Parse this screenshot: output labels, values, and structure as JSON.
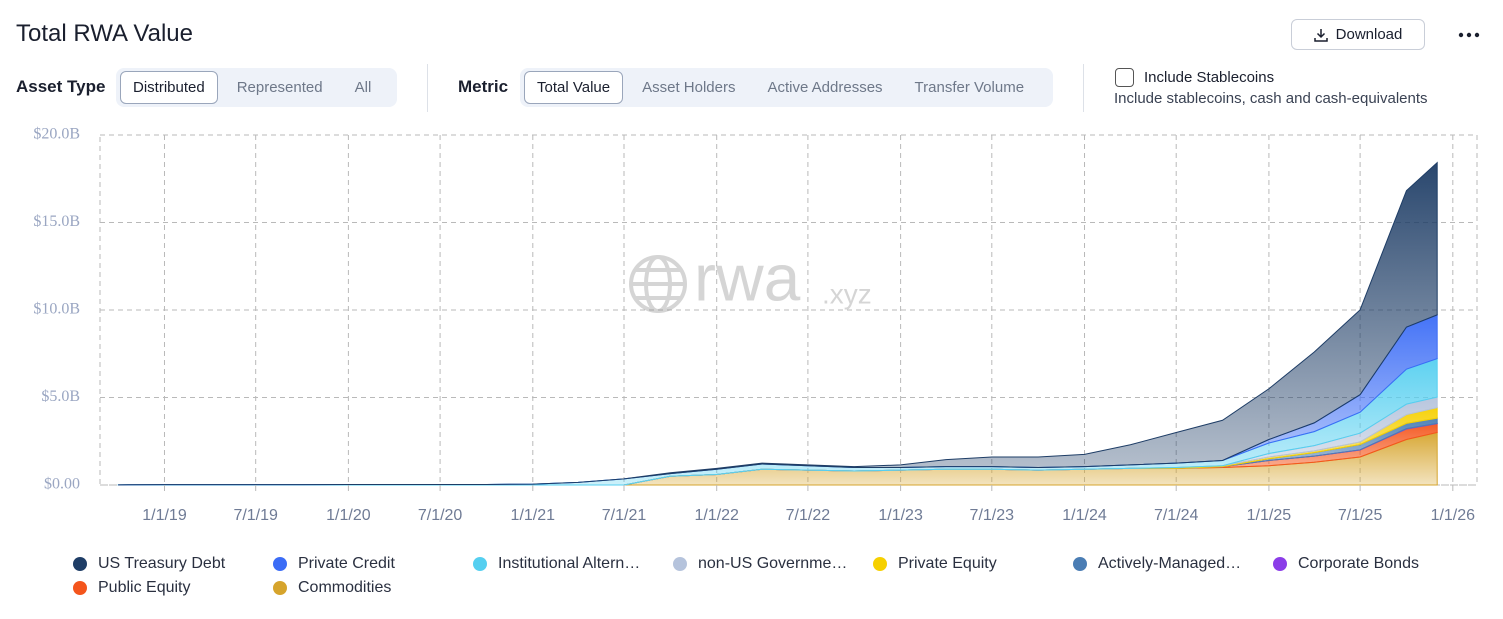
{
  "header": {
    "title": "Total RWA Value",
    "download": "Download"
  },
  "asset_type": {
    "label": "Asset Type",
    "options": [
      "Distributed",
      "Represented",
      "All"
    ]
  },
  "metric": {
    "label": "Metric",
    "options": [
      "Total Value",
      "Asset Holders",
      "Active Addresses",
      "Transfer Volume"
    ]
  },
  "stablecoins": {
    "label": "Include Stablecoins",
    "description": "Include stablecoins, cash and cash-equivalents"
  },
  "watermark": {
    "name": "rwa",
    "suffix": ".xyz"
  },
  "chart_data": {
    "type": "area",
    "stacked": true,
    "grid": true,
    "x": [
      "10/1/18",
      "1/1/19",
      "4/1/19",
      "7/1/19",
      "10/1/19",
      "1/1/20",
      "4/1/20",
      "7/1/20",
      "10/1/20",
      "1/1/21",
      "4/1/21",
      "7/1/21",
      "10/1/21",
      "1/1/22",
      "4/1/22",
      "7/1/22",
      "10/1/22",
      "1/1/23",
      "4/1/23",
      "7/1/23",
      "10/1/23",
      "1/1/24",
      "4/1/24",
      "7/1/24",
      "10/1/24",
      "1/1/25",
      "4/1/25",
      "7/1/25",
      "10/1/25",
      "12/1/25"
    ],
    "xlim": [
      "8/26/18",
      "2/18/26"
    ],
    "xticks": [
      "1/1/19",
      "7/1/19",
      "1/1/20",
      "7/1/20",
      "1/1/21",
      "7/1/21",
      "1/1/22",
      "7/1/22",
      "1/1/23",
      "7/1/23",
      "1/1/24",
      "7/1/24",
      "1/1/25",
      "7/1/25",
      "1/1/26"
    ],
    "ylim": [
      0,
      20000000000
    ],
    "yticks": [
      {
        "value": 0,
        "label": "$0.00"
      },
      {
        "value": 5000000000,
        "label": "$5.0B"
      },
      {
        "value": 10000000000,
        "label": "$10.0B"
      },
      {
        "value": 15000000000,
        "label": "$15.0B"
      },
      {
        "value": 20000000000,
        "label": "$20.0B"
      }
    ],
    "series": [
      {
        "name": "US Treasury Debt",
        "color": "#1e3d66",
        "values": [
          0,
          0,
          0,
          0,
          0,
          0,
          0,
          0,
          0,
          0,
          0,
          0,
          50000000,
          50000000,
          50000000,
          50000000,
          50000000,
          150000000,
          400000000,
          550000000,
          600000000,
          700000000,
          1150000000,
          1750000000,
          2300000000,
          2900000000,
          4050000000,
          4850000000,
          7800000000,
          8700000000
        ]
      },
      {
        "name": "Private Credit",
        "color": "#3b6cf6",
        "values": [
          0,
          0,
          0,
          0,
          0,
          0,
          0,
          0,
          0,
          0,
          0,
          0,
          0,
          0,
          0,
          0,
          0,
          0,
          0,
          0,
          0,
          0,
          0,
          0,
          0,
          200000000,
          500000000,
          1000000000,
          2400000000,
          2500000000
        ]
      },
      {
        "name": "Institutional Altern…",
        "color": "#55cff0",
        "values": [
          10000000,
          20000000,
          20000000,
          20000000,
          20000000,
          30000000,
          30000000,
          30000000,
          30000000,
          50000000,
          150000000,
          350000000,
          150000000,
          300000000,
          300000000,
          250000000,
          200000000,
          150000000,
          150000000,
          150000000,
          150000000,
          150000000,
          200000000,
          250000000,
          300000000,
          600000000,
          800000000,
          1200000000,
          2000000000,
          2200000000
        ]
      },
      {
        "name": "non-US Governme…",
        "color": "#b5c3dc",
        "values": [
          0,
          0,
          0,
          0,
          0,
          0,
          0,
          0,
          0,
          0,
          0,
          0,
          0,
          0,
          0,
          0,
          0,
          0,
          0,
          0,
          0,
          0,
          0,
          0,
          0,
          200000000,
          300000000,
          500000000,
          600000000,
          600000000
        ]
      },
      {
        "name": "Private Equity",
        "color": "#f6d000",
        "values": [
          0,
          0,
          0,
          0,
          0,
          0,
          0,
          0,
          0,
          0,
          0,
          0,
          0,
          0,
          0,
          0,
          0,
          0,
          0,
          0,
          0,
          0,
          0,
          50000000,
          50000000,
          100000000,
          100000000,
          150000000,
          500000000,
          600000000
        ]
      },
      {
        "name": "Actively-Managed…",
        "color": "#4a7db4",
        "values": [
          0,
          0,
          0,
          0,
          0,
          0,
          0,
          0,
          0,
          0,
          0,
          0,
          0,
          0,
          0,
          0,
          0,
          0,
          0,
          0,
          0,
          0,
          0,
          0,
          0,
          100000000,
          200000000,
          300000000,
          300000000,
          300000000
        ]
      },
      {
        "name": "Corporate Bonds",
        "color": "#8b3de8",
        "values": [
          0,
          0,
          0,
          0,
          0,
          0,
          0,
          0,
          0,
          0,
          0,
          0,
          0,
          0,
          0,
          0,
          0,
          0,
          0,
          0,
          0,
          0,
          0,
          0,
          0,
          0,
          0,
          10000000,
          20000000,
          20000000
        ]
      },
      {
        "name": "Public Equity",
        "color": "#f4551c",
        "values": [
          0,
          0,
          0,
          0,
          0,
          0,
          0,
          0,
          0,
          0,
          0,
          0,
          0,
          0,
          0,
          0,
          0,
          0,
          0,
          0,
          0,
          0,
          0,
          0,
          50000000,
          300000000,
          350000000,
          400000000,
          600000000,
          500000000
        ]
      },
      {
        "name": "Commodities",
        "color": "#d6a42c",
        "values": [
          0,
          0,
          0,
          0,
          0,
          0,
          0,
          0,
          0,
          0,
          0,
          0,
          500000000,
          600000000,
          900000000,
          850000000,
          800000000,
          850000000,
          900000000,
          900000000,
          850000000,
          900000000,
          950000000,
          950000000,
          1000000000,
          1100000000,
          1300000000,
          1600000000,
          2600000000,
          3000000000
        ]
      }
    ]
  }
}
